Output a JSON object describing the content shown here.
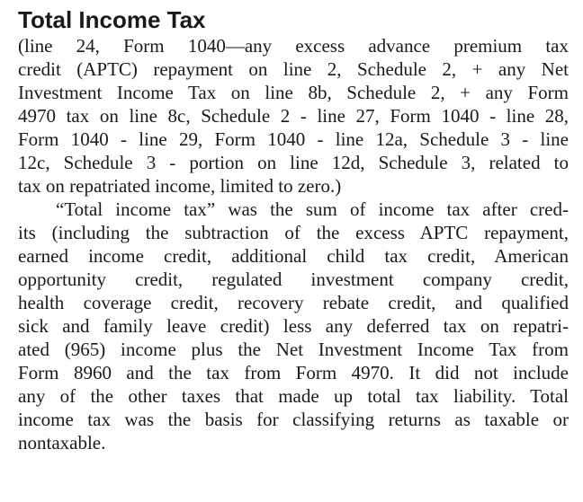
{
  "heading": "Total Income Tax",
  "definition_lines": [
    "(line 24, Form 1040—any excess advance premium tax",
    "credit (APTC) repayment on line 2, Schedule 2, + any Net",
    "Investment Income Tax on line 8b, Schedule 2, + any Form",
    "4970 tax on line 8c, Schedule 2 - line 27, Form 1040 - line 28,",
    "Form 1040 - line 29, Form 1040 - line 12a, Schedule 3 - line",
    "12c, Schedule 3 - portion on line 12d, Schedule 3, related to",
    "tax on repatriated income, limited to zero.)"
  ],
  "body_lines": [
    "“Total income tax” was the sum of income tax after cred-",
    "its (including the subtraction of the excess APTC repayment,",
    "earned income credit, additional child tax credit, American",
    "opportunity credit, regulated investment company credit,",
    "health coverage credit, recovery rebate credit, and qualified",
    "sick and family leave credit) less any deferred tax on repatri-",
    "ated (965) income plus the Net Investment Income Tax from",
    "Form 8960 and the tax from Form 4970. It did not include",
    "any of the other taxes that made up total tax liability. Total",
    "income tax was the basis for classifying returns as taxable or",
    "nontaxable."
  ]
}
